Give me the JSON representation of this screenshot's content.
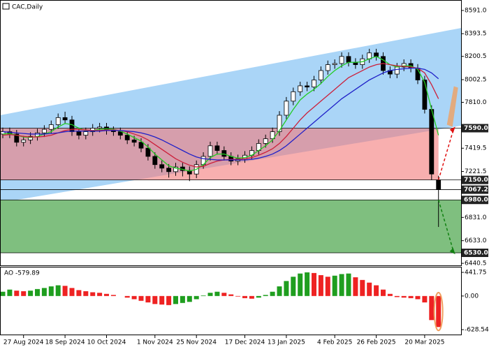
{
  "chart_data": [
    {
      "type": "candlestick",
      "title": "CAC,Daily",
      "categories": [
        null,
        null,
        null,
        "27 Aug 2024",
        null,
        null,
        null,
        null,
        null,
        "18 Sep 2024",
        null,
        null,
        null,
        null,
        null,
        "10 Oct 2024",
        null,
        null,
        null,
        null,
        null,
        null,
        "1 Nov 2024",
        null,
        null,
        null,
        null,
        null,
        "25 Nov 2024",
        null,
        null,
        null,
        null,
        null,
        null,
        "17 Dec 2024",
        null,
        null,
        null,
        null,
        null,
        "13 Jan 2025",
        null,
        null,
        null,
        null,
        null,
        null,
        "4 Feb 2025",
        null,
        null,
        null,
        null,
        null,
        "26 Feb 2025",
        null,
        null,
        null,
        null,
        null,
        null,
        "20 Mar 2025",
        null,
        null
      ],
      "open": [
        7540,
        7560,
        7540,
        7470,
        7490,
        7520,
        7550,
        7580,
        7620,
        7680,
        7660,
        7560,
        7530,
        7560,
        7590,
        7600,
        7570,
        7560,
        7530,
        7490,
        7470,
        7420,
        7350,
        7280,
        7250,
        7220,
        7260,
        7230,
        7200,
        7280,
        7350,
        7440,
        7400,
        7350,
        7310,
        7330,
        7360,
        7400,
        7460,
        7500,
        7560,
        7700,
        7820,
        7900,
        7950,
        7940,
        8000,
        8080,
        8130,
        8140,
        8200,
        8150,
        8130,
        8180,
        8230,
        8200,
        8080,
        8050,
        8110,
        8140,
        8100,
        8000,
        7750,
        7150
      ],
      "high": [
        7595,
        7595,
        7575,
        7525,
        7555,
        7585,
        7615,
        7655,
        7715,
        7730,
        7695,
        7595,
        7595,
        7625,
        7635,
        7635,
        7605,
        7595,
        7565,
        7525,
        7505,
        7455,
        7385,
        7315,
        7285,
        7295,
        7295,
        7265,
        7315,
        7385,
        7475,
        7475,
        7435,
        7385,
        7365,
        7395,
        7435,
        7495,
        7535,
        7595,
        7735,
        7855,
        7935,
        7985,
        7985,
        8035,
        8115,
        8165,
        8175,
        8235,
        8235,
        8185,
        8215,
        8265,
        8265,
        8235,
        8115,
        8145,
        8175,
        8175,
        8135,
        8035,
        7785,
        7185
      ],
      "low": [
        7505,
        7505,
        7435,
        7435,
        7455,
        7485,
        7515,
        7545,
        7585,
        7625,
        7525,
        7495,
        7495,
        7525,
        7555,
        7535,
        7525,
        7495,
        7455,
        7435,
        7385,
        7315,
        7245,
        7215,
        7170,
        7185,
        7180,
        7140,
        7165,
        7245,
        7315,
        7365,
        7315,
        7275,
        7275,
        7295,
        7325,
        7365,
        7425,
        7465,
        7525,
        7665,
        7785,
        7865,
        7905,
        7905,
        7965,
        8045,
        8095,
        8105,
        8115,
        8095,
        8095,
        8145,
        8165,
        8045,
        8015,
        8015,
        8075,
        8065,
        7965,
        7715,
        7150,
        6750
      ],
      "close": [
        7560,
        7540,
        7470,
        7490,
        7520,
        7550,
        7580,
        7620,
        7680,
        7660,
        7560,
        7530,
        7560,
        7590,
        7600,
        7570,
        7560,
        7530,
        7490,
        7470,
        7420,
        7350,
        7280,
        7250,
        7220,
        7260,
        7230,
        7200,
        7280,
        7350,
        7440,
        7400,
        7350,
        7310,
        7330,
        7360,
        7400,
        7460,
        7500,
        7560,
        7700,
        7820,
        7900,
        7950,
        7940,
        8000,
        8080,
        8130,
        8140,
        8200,
        8150,
        8130,
        8180,
        8230,
        8200,
        8080,
        8050,
        8110,
        8140,
        8100,
        8000,
        7750,
        7200,
        7067.2
      ],
      "lines": [
        {
          "color": "#22cc22",
          "values": [
            7540,
            7545,
            7530,
            7515,
            7510,
            7520,
            7540,
            7560,
            7600,
            7630,
            7620,
            7590,
            7570,
            7570,
            7580,
            7585,
            7580,
            7565,
            7540,
            7510,
            7480,
            7430,
            7370,
            7320,
            7270,
            7250,
            7240,
            7225,
            7240,
            7280,
            7340,
            7370,
            7370,
            7350,
            7335,
            7340,
            7360,
            7400,
            7440,
            7490,
            7570,
            7660,
            7750,
            7830,
            7880,
            7920,
            7970,
            8030,
            8080,
            8120,
            8150,
            8150,
            8155,
            8180,
            8200,
            8170,
            8130,
            8110,
            8120,
            8120,
            8090,
            7980,
            7750,
            7530
          ]
        },
        {
          "color": "#cc1f3a",
          "values": [
            7530,
            7535,
            7530,
            7520,
            7515,
            7515,
            7520,
            7530,
            7550,
            7570,
            7580,
            7580,
            7575,
            7570,
            7570,
            7575,
            7575,
            7570,
            7560,
            7540,
            7520,
            7490,
            7450,
            7410,
            7370,
            7330,
            7300,
            7275,
            7260,
            7265,
            7290,
            7310,
            7320,
            7325,
            7325,
            7330,
            7340,
            7360,
            7385,
            7415,
            7460,
            7520,
            7590,
            7660,
            7720,
            7770,
            7820,
            7870,
            7920,
            7970,
            8020,
            8050,
            8080,
            8110,
            8130,
            8140,
            8130,
            8120,
            8115,
            8110,
            8100,
            8060,
            7960,
            7840
          ]
        },
        {
          "color": "#2020c8",
          "values": [
            7560,
            7555,
            7550,
            7545,
            7540,
            7540,
            7540,
            7545,
            7550,
            7560,
            7565,
            7565,
            7565,
            7565,
            7565,
            7570,
            7570,
            7570,
            7565,
            7560,
            7550,
            7535,
            7515,
            7490,
            7460,
            7430,
            7400,
            7370,
            7345,
            7330,
            7325,
            7320,
            7320,
            7320,
            7320,
            7320,
            7325,
            7335,
            7350,
            7370,
            7400,
            7440,
            7490,
            7540,
            7590,
            7640,
            7690,
            7740,
            7790,
            7840,
            7880,
            7920,
            7960,
            8000,
            8030,
            8060,
            8080,
            8090,
            8095,
            8100,
            8100,
            8090,
            8060,
            8010
          ]
        }
      ],
      "channel": {
        "upper": [
          7700,
          8442
        ],
        "lower": [
          6957,
          7611
        ],
        "color": "#aad5f7"
      },
      "levels": [
        {
          "value": 7590,
          "label": "7590.0"
        },
        {
          "value": 7150,
          "label": "7150.0"
        },
        7067.2,
        {
          "value": 6980,
          "label": "6980.0"
        },
        {
          "value": 6530,
          "label": "6530.0"
        }
      ],
      "ylim": [
        6423,
        8680
      ],
      "yticks": [
        {
          "value": 8591,
          "label": "8591.0"
        },
        8393.5,
        8200.5,
        8002.5,
        {
          "value": 7810,
          "label": "7810.0"
        },
        7419.5,
        7221.5,
        {
          "value": 6831,
          "label": "6831.0"
        },
        {
          "value": 6633,
          "label": "6633.0"
        },
        6440.5
      ]
    },
    {
      "type": "bar",
      "title": "AO -579.89",
      "values": [
        80,
        120,
        100,
        90,
        100,
        130,
        150,
        180,
        200,
        190,
        150,
        110,
        90,
        70,
        60,
        40,
        20,
        0,
        -30,
        -60,
        -90,
        -120,
        -150,
        -160,
        -170,
        -150,
        -130,
        -110,
        -60,
        10,
        60,
        80,
        60,
        30,
        -10,
        -40,
        -50,
        -30,
        20,
        80,
        180,
        280,
        360,
        420,
        441.75,
        430,
        390,
        360,
        380,
        410,
        420,
        350,
        300,
        250,
        200,
        120,
        40,
        -20,
        -30,
        -40,
        -60,
        -120,
        -450,
        -579.89
      ],
      "up_color": "#1f9e1f",
      "down_color": "#ee2222",
      "ylim": [
        -733,
        533
      ],
      "yticks": [
        441.75,
        {
          "value": 0,
          "label": "0.00"
        },
        -628.54
      ]
    }
  ]
}
